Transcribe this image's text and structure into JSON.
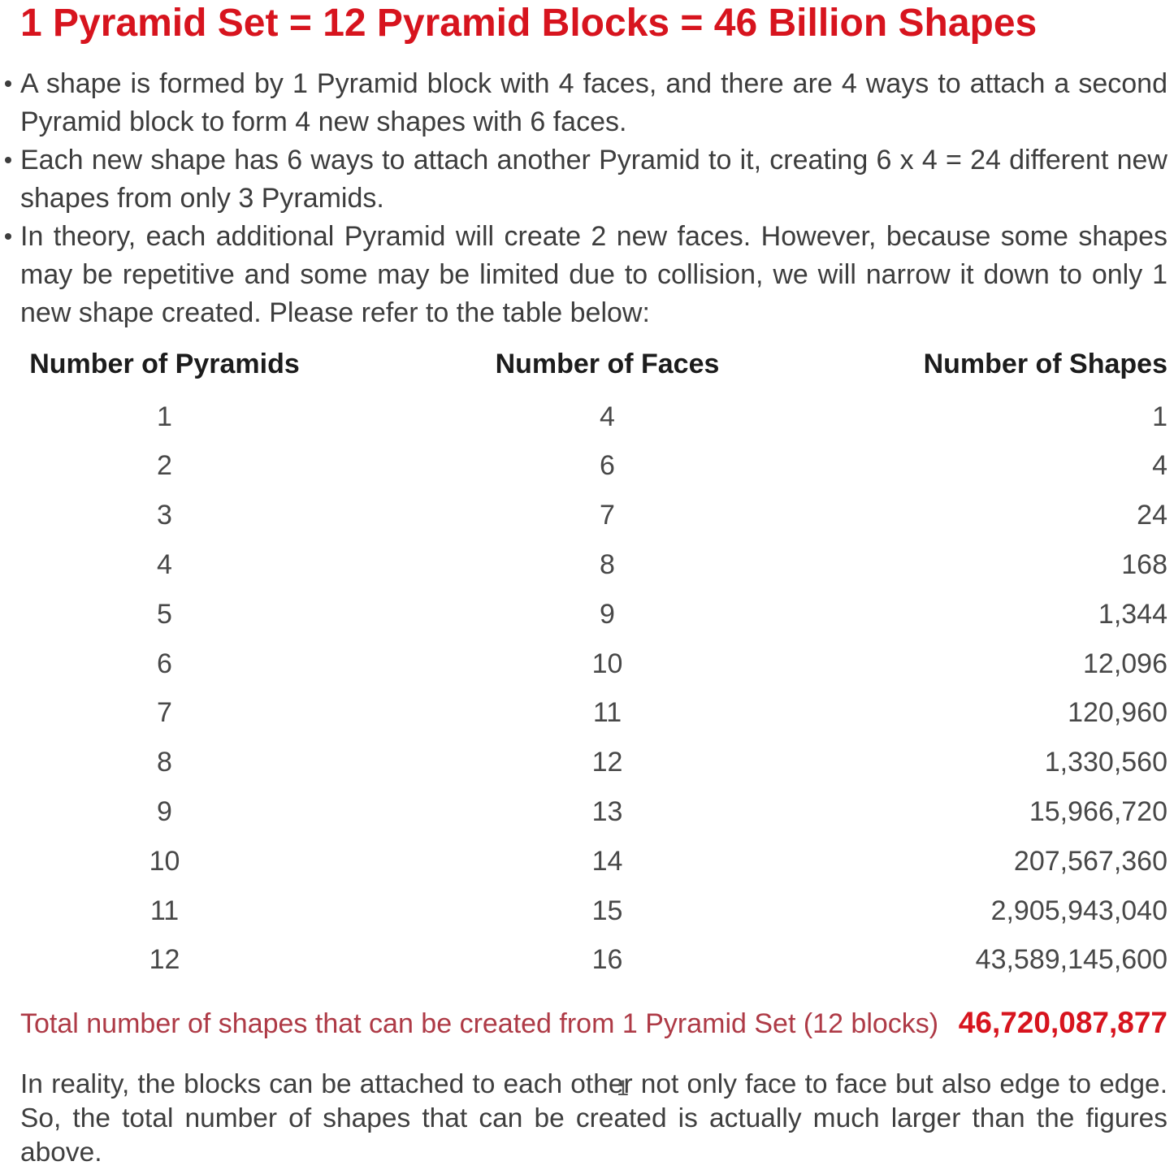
{
  "title": "1 Pyramid Set = 12 Pyramid Blocks = 46 Billion Shapes",
  "bullets": [
    "A shape is formed by 1 Pyramid block with 4 faces, and there are 4 ways to attach a second Pyramid block to form 4 new shapes with 6 faces.",
    "Each new shape has 6 ways to attach another Pyramid to it, creating 6 x 4 = 24 different new shapes from only 3 Pyramids.",
    "In theory, each additional Pyramid will create 2 new faces. However, because some shapes may be repetitive and some may be limited due to collision, we will narrow it down to only 1 new shape created. Please refer to the table below:"
  ],
  "table": {
    "headers": [
      "Number of Pyramids",
      "Number of Faces",
      "Number of Shapes"
    ],
    "rows": [
      [
        "1",
        "4",
        "1"
      ],
      [
        "2",
        "6",
        "4"
      ],
      [
        "3",
        "7",
        "24"
      ],
      [
        "4",
        "8",
        "168"
      ],
      [
        "5",
        "9",
        "1,344"
      ],
      [
        "6",
        "10",
        "12,096"
      ],
      [
        "7",
        "11",
        "120,960"
      ],
      [
        "8",
        "12",
        "1,330,560"
      ],
      [
        "9",
        "13",
        "15,966,720"
      ],
      [
        "10",
        "14",
        "207,567,360"
      ],
      [
        "11",
        "15",
        "2,905,943,040"
      ],
      [
        "12",
        "16",
        "43,589,145,600"
      ]
    ]
  },
  "total": {
    "label": "Total number of shapes that can be created from 1 Pyramid Set (12 blocks)",
    "value": "46,720,087,877"
  },
  "footer": "In reality, the blocks can be attached to each other not only face to face but also edge to edge. So, the total number of shapes that can be created is actually much larger than the figures above.",
  "page_number": "1",
  "colors": {
    "title_red": "#d7141e",
    "total_label_red": "#ae3a46",
    "total_value_red": "#d7141e",
    "body_text": "#3d3d3d"
  }
}
